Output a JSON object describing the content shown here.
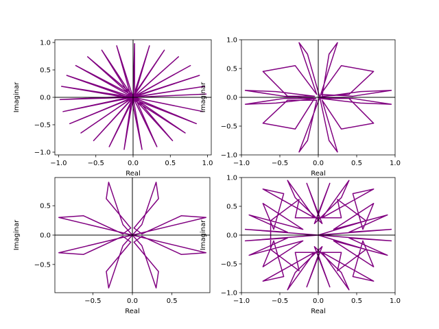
{
  "chart_data": [
    {
      "type": "line",
      "title": "",
      "xlabel": "Real",
      "ylabel": "Imaginar",
      "xlim": [
        -1.05,
        1.05
      ],
      "ylim": [
        -1.05,
        1.05
      ],
      "xticks": [
        -1.0,
        -0.5,
        0.0,
        0.5,
        1.0
      ],
      "xtick_labels": [
        "−1.0",
        "−0.5",
        "0.0",
        "0.5",
        "1.0"
      ],
      "yticks": [
        -1.0,
        -0.5,
        0.0,
        0.5,
        1.0
      ],
      "ytick_labels": [
        "−1.0",
        "−0.5",
        "0.0",
        "0.5",
        "1.0"
      ],
      "grid": false,
      "line_color": "#800080",
      "series": [
        {
          "x": [
            0.0,
            0.98,
            -0.02,
            0.96,
            0.0,
            0.89,
            0.02,
            0.77,
            0.0,
            0.61,
            -0.02,
            0.42,
            0.0,
            0.22,
            0.02,
            0.02,
            0.0,
            -0.22,
            -0.02,
            -0.42,
            0.0,
            -0.61,
            0.02,
            -0.77,
            0.0,
            -0.89,
            -0.02,
            -0.96,
            0.0,
            -0.98,
            0.02,
            -0.94,
            0.0,
            -0.85,
            -0.02,
            -0.7,
            0.0,
            -0.53,
            0.02,
            -0.32,
            0.0,
            -0.12,
            -0.02,
            0.12,
            0.0,
            0.32,
            0.02,
            0.53,
            0.0,
            0.7,
            -0.02,
            0.85,
            0.0,
            0.94,
            0.0
          ],
          "y": [
            0.0,
            0.06,
            0.0,
            0.2,
            0.0,
            0.4,
            0.02,
            0.58,
            0.0,
            0.74,
            -0.02,
            0.86,
            0.0,
            0.94,
            0.02,
            0.98,
            0.0,
            0.94,
            -0.02,
            0.86,
            0.0,
            0.74,
            0.02,
            0.58,
            0.0,
            0.4,
            -0.02,
            0.2,
            0.0,
            -0.04,
            0.02,
            -0.26,
            0.0,
            -0.48,
            -0.02,
            -0.65,
            0.0,
            -0.79,
            0.02,
            -0.9,
            0.0,
            -0.95,
            -0.02,
            -0.95,
            0.0,
            -0.9,
            0.02,
            -0.79,
            0.0,
            -0.65,
            -0.02,
            -0.48,
            0.0,
            -0.26,
            0.0
          ]
        }
      ]
    },
    {
      "type": "line",
      "title": "",
      "xlabel": "Real",
      "ylabel": "Imaginar",
      "xlim": [
        -1.0,
        1.0
      ],
      "ylim": [
        -1.0,
        1.0
      ],
      "xticks": [
        -1.0,
        -0.5,
        0.0,
        0.5,
        1.0
      ],
      "xtick_labels": [
        "−1.0",
        "−0.5",
        "0.0",
        "0.5",
        "1.0"
      ],
      "yticks": [
        -1.0,
        -0.5,
        0.0,
        0.5,
        1.0
      ],
      "ytick_labels": [
        "−1.0",
        "−0.5",
        "0.0",
        "0.5",
        "1.0"
      ],
      "grid": false,
      "line_color": "#800080",
      "series": [
        {
          "x": [
            0.0,
            0.55,
            0.95,
            0.45,
            0.03,
            0.3,
            0.72,
            0.4,
            0.05,
            0.14,
            0.25,
            0.02,
            -0.14,
            -0.25,
            -0.02,
            -0.3,
            -0.72,
            -0.4,
            -0.05,
            -0.55,
            -0.95,
            -0.45,
            -0.03,
            -0.55,
            -0.95,
            -0.45,
            -0.05,
            -0.3,
            -0.72,
            -0.4,
            -0.02,
            -0.14,
            -0.25,
            0.02,
            0.14,
            0.25,
            0.05,
            0.3,
            0.72,
            0.4,
            0.03,
            0.55,
            0.95,
            0.45,
            0.0
          ],
          "y": [
            0.0,
            0.1,
            0.12,
            0.02,
            0.05,
            0.55,
            0.45,
            0.05,
            0.02,
            0.75,
            0.95,
            0.0,
            0.75,
            0.95,
            0.05,
            0.55,
            0.45,
            0.02,
            0.02,
            0.1,
            0.12,
            0.02,
            -0.02,
            -0.1,
            -0.12,
            -0.02,
            -0.02,
            -0.55,
            -0.45,
            -0.05,
            -0.05,
            -0.75,
            -0.95,
            0.0,
            -0.75,
            -0.95,
            -0.05,
            -0.55,
            -0.45,
            -0.02,
            -0.02,
            -0.1,
            -0.12,
            -0.02,
            0.0
          ]
        }
      ]
    },
    {
      "type": "line",
      "title": "",
      "xlabel": "Real",
      "ylabel": "Imaginar",
      "xlim": [
        -0.98,
        0.98
      ],
      "ylim": [
        -0.98,
        0.98
      ],
      "xticks": [
        -0.5,
        0.0,
        0.5
      ],
      "xtick_labels": [
        "−0.5",
        "0.0",
        "0.5"
      ],
      "yticks": [
        -0.5,
        0.0,
        0.5
      ],
      "ytick_labels": [
        "−0.5",
        "0.0",
        "0.5"
      ],
      "grid": false,
      "line_color": "#800080",
      "series": [
        {
          "x": [
            0.0,
            0.93,
            0.62,
            0.12,
            0.02,
            0.33,
            0.3,
            0.12,
            0.0,
            -0.12,
            -0.3,
            -0.33,
            -0.02,
            -0.12,
            -0.62,
            -0.93,
            0.0,
            -0.93,
            -0.62,
            -0.12,
            -0.02,
            -0.33,
            -0.3,
            -0.12,
            0.0,
            0.12,
            0.3,
            0.33,
            0.02,
            0.12,
            0.62,
            0.93,
            0.0
          ],
          "y": [
            0.0,
            0.3,
            0.33,
            0.02,
            0.12,
            0.62,
            0.9,
            0.18,
            0.0,
            0.18,
            0.9,
            0.62,
            0.12,
            0.02,
            0.33,
            0.3,
            0.0,
            -0.3,
            -0.33,
            -0.02,
            -0.12,
            -0.62,
            -0.9,
            -0.18,
            0.0,
            -0.18,
            -0.9,
            -0.62,
            -0.12,
            -0.02,
            -0.33,
            -0.3,
            0.0
          ]
        }
      ]
    },
    {
      "type": "line",
      "title": "",
      "xlabel": "Real",
      "ylabel": "Imaginar",
      "xlim": [
        -1.0,
        1.0
      ],
      "ylim": [
        -1.0,
        1.0
      ],
      "xticks": [
        -1.0,
        -0.5,
        0.0,
        0.5,
        1.0
      ],
      "xtick_labels": [
        "−1.0",
        "−0.5",
        "0.0",
        "0.5",
        "1.0"
      ],
      "yticks": [
        -1.0,
        -0.5,
        0.0,
        0.5,
        1.0
      ],
      "ytick_labels": [
        "−1.0",
        "−0.5",
        "0.0",
        "0.5",
        "1.0"
      ],
      "grid": false,
      "line_color": "#800080",
      "series": [
        {
          "x": [
            0.0,
            0.95,
            0.4,
            0.9,
            0.2,
            0.72,
            0.58,
            0.45,
            0.72,
            0.05,
            0.4,
            0.3,
            -0.05,
            0.15,
            0.0,
            -0.15,
            0.05,
            -0.3,
            -0.4,
            -0.05,
            -0.72,
            -0.45,
            -0.58,
            -0.72,
            -0.2,
            -0.9,
            -0.4,
            -0.95,
            0.0,
            -0.95,
            -0.4,
            -0.9,
            -0.2,
            -0.72,
            -0.58,
            -0.45,
            -0.72,
            -0.05,
            -0.4,
            -0.3,
            0.05,
            -0.15,
            0.0,
            0.15,
            -0.05,
            0.3,
            0.4,
            0.05,
            0.72,
            0.45,
            0.58,
            0.72,
            0.2,
            0.9,
            0.4,
            0.95,
            0.0,
            0.62,
            0.25,
            0.3,
            -0.3,
            -0.25,
            -0.62,
            -0.62,
            -0.25,
            -0.3,
            0.3,
            0.25,
            0.62,
            0.0
          ],
          "y": [
            0.0,
            0.1,
            0.05,
            0.35,
            0.1,
            0.55,
            0.1,
            0.72,
            0.8,
            0.3,
            0.95,
            0.65,
            0.2,
            0.9,
            0.35,
            0.9,
            0.2,
            0.65,
            0.95,
            0.3,
            0.8,
            0.72,
            0.1,
            0.55,
            0.1,
            0.35,
            0.05,
            0.1,
            0.0,
            -0.1,
            -0.05,
            -0.35,
            -0.1,
            -0.55,
            -0.1,
            -0.72,
            -0.8,
            -0.3,
            -0.95,
            -0.65,
            -0.2,
            -0.9,
            -0.35,
            -0.9,
            -0.2,
            -0.65,
            -0.95,
            -0.3,
            -0.8,
            -0.72,
            -0.1,
            -0.55,
            -0.1,
            -0.35,
            -0.05,
            -0.1,
            0.0,
            0.25,
            0.62,
            0.3,
            0.3,
            0.62,
            0.25,
            -0.25,
            -0.62,
            -0.3,
            -0.3,
            -0.62,
            -0.25,
            0.0
          ]
        }
      ]
    }
  ]
}
